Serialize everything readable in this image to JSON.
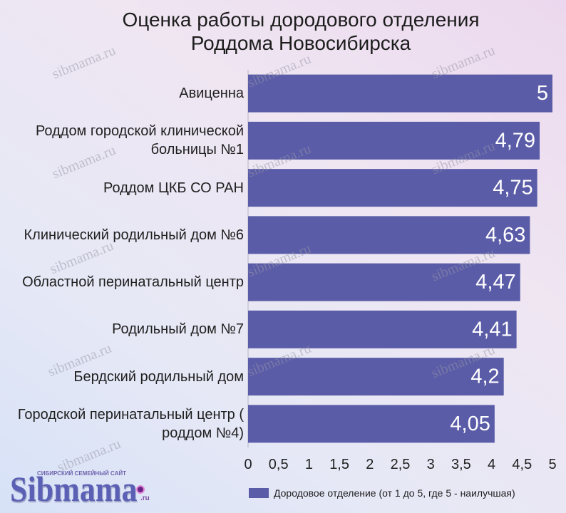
{
  "watermark": "sibmama.ru",
  "logo": {
    "tagline": "СИБИРСКИЙ СЕМЕЙНЫЙ САЙТ",
    "name": "Sibmama",
    "suffix": ".ru"
  },
  "chart_data": {
    "type": "bar",
    "orientation": "horizontal",
    "title": "Оценка работы дородового отделения Роддома Новосибирска",
    "categories": [
      "Авиценна",
      "Роддом городской клинической больницы №1",
      "Роддом ЦКБ СО РАН",
      "Клинический родильный дом №6",
      "Областной перинатальный центр",
      "Родильный дом №7",
      "Бердский родильный дом",
      "Городской перинатальный центр ( роддом №4)"
    ],
    "series": [
      {
        "name": "Дородовое отделение (от 1 до 5, где 5 - наилучшая)",
        "values": [
          5,
          4.79,
          4.75,
          4.63,
          4.47,
          4.41,
          4.2,
          4.05
        ],
        "color": "#5a5ca8"
      }
    ],
    "value_labels": [
      "5",
      "4,79",
      "4,75",
      "4,63",
      "4,47",
      "4,41",
      "4,2",
      "4,05"
    ],
    "xlim": [
      0,
      5
    ],
    "x_ticks": [
      0,
      0.5,
      1,
      1.5,
      2,
      2.5,
      3,
      3.5,
      4,
      4.5,
      5
    ],
    "x_tick_labels": [
      "0",
      "0,5",
      "1",
      "1,5",
      "2",
      "2,5",
      "3",
      "3,5",
      "4",
      "4,5",
      "5"
    ],
    "grid": false,
    "legend": {
      "position": "bottom"
    }
  }
}
